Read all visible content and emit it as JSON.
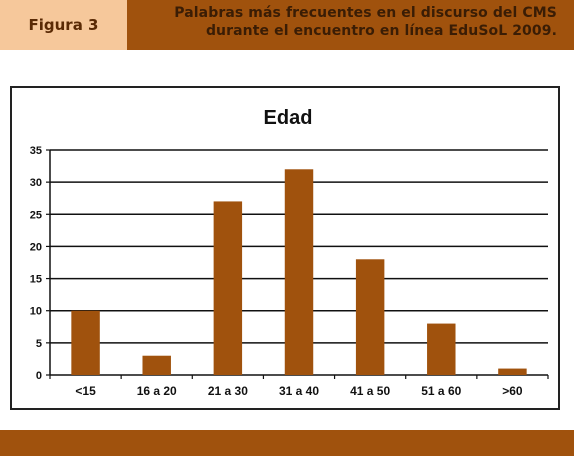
{
  "header": {
    "figure_label": "Figura 3",
    "title_line1": "Palabras más frecuentes en el discurso del CMS",
    "title_line2": "durante el encuentro en línea EduSoL 2009."
  },
  "colors": {
    "header_bar": "#a0520d",
    "label_box": "#f6c89b",
    "bar_fill": "#a0520d"
  },
  "chart_data": {
    "type": "bar",
    "title": "Edad",
    "categories": [
      "<15",
      "16 a 20",
      "21 a 30",
      "31 a 40",
      "41 a 50",
      "51 a 60",
      ">60"
    ],
    "values": [
      10,
      3,
      27,
      32,
      18,
      8,
      1
    ],
    "ylim": [
      0,
      35
    ],
    "yticks": [
      0,
      5,
      10,
      15,
      20,
      25,
      30,
      35
    ],
    "grid": true,
    "legend": "none"
  }
}
